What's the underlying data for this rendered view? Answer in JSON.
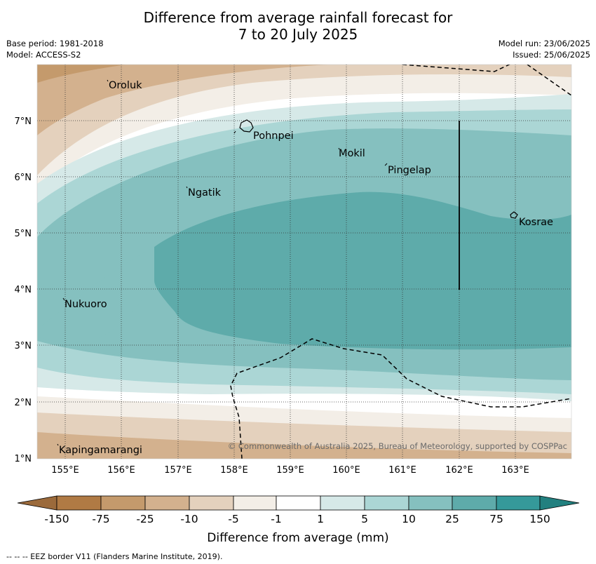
{
  "title": {
    "line1": "Difference from average rainfall forecast for",
    "line2": "7 to 20 July 2025"
  },
  "meta": {
    "base_period": "Base period: 1981-2018",
    "model": "Model: ACCESS-S2",
    "model_run": "Model run: 23/06/2025",
    "issued": "Issued: 25/06/2025"
  },
  "map": {
    "lat_labels": [
      "7°N",
      "6°N",
      "5°N",
      "4°N",
      "3°N",
      "2°N",
      "1°N"
    ],
    "lon_labels": [
      "155°E",
      "156°E",
      "157°E",
      "158°E",
      "159°E",
      "160°E",
      "161°E",
      "162°E",
      "163°E"
    ],
    "places": [
      "Oroluk",
      "Pohnpei",
      "Mokil",
      "Pingelap",
      "Ngatik",
      "Kosrae",
      "Nukuoro",
      "Kapingamarangi"
    ],
    "copyright": "© Commonwealth of Australia 2025, Bureau of Meteorology, supported by COSPPac"
  },
  "legend": {
    "ticks": [
      "-150",
      "-75",
      "-25",
      "-10",
      "-5",
      "-1",
      "1",
      "5",
      "10",
      "25",
      "75",
      "150"
    ],
    "colors": [
      "#9b6a3b",
      "#b07a44",
      "#c49a6c",
      "#d3b18e",
      "#e4d1bd",
      "#f3eee7",
      "#ffffff",
      "#d6e9e8",
      "#abd6d5",
      "#85c0bf",
      "#5eabaa",
      "#35999a",
      "#22807f"
    ],
    "label": "Difference from average (mm)"
  },
  "footnote": "--  --  -- EEZ border V11 (Flanders Marine Institute, 2019)."
}
